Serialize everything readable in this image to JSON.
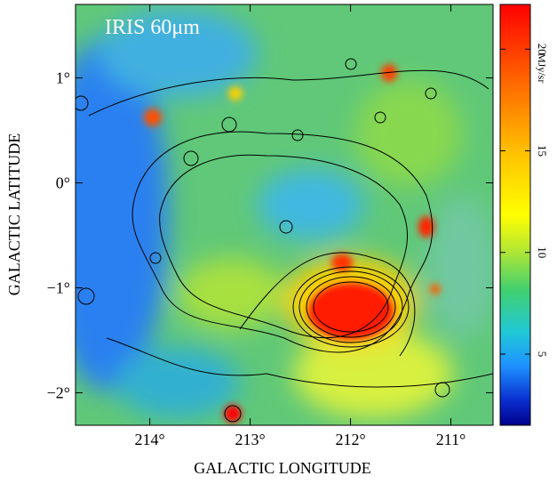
{
  "chart_data": {
    "type": "image",
    "title": "IRIS 60μm",
    "xlabel": "GALACTIC LONGITUDE",
    "ylabel": "GALACTIC LATITUDE",
    "xlim": [
      214.74,
      210.58
    ],
    "xticks": [
      {
        "value": 214,
        "label": "214°"
      },
      {
        "value": 213,
        "label": "213°"
      },
      {
        "value": 212,
        "label": "212°"
      },
      {
        "value": 211,
        "label": "211°"
      }
    ],
    "ylim": [
      -2.31,
      1.7
    ],
    "yticks": [
      {
        "value": 1,
        "label": "1°"
      },
      {
        "value": 0,
        "label": "0°"
      },
      {
        "value": -1,
        "label": "−1°"
      },
      {
        "value": -2,
        "label": "−2°"
      }
    ],
    "colorbar": {
      "label": "MJy/sr",
      "lim": [
        1.5,
        22.2
      ],
      "ticks": [
        5,
        10,
        15,
        20
      ]
    }
  }
}
